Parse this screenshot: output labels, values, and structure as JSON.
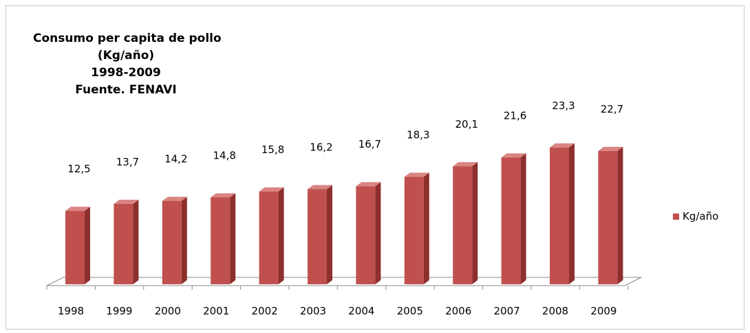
{
  "chart_data": {
    "type": "bar",
    "title_lines": [
      "Consumo per capita de pollo",
      "(Kg/año)",
      "1998-2009",
      "Fuente. FENAVI"
    ],
    "categories": [
      "1998",
      "1999",
      "2000",
      "2001",
      "2002",
      "2003",
      "2004",
      "2005",
      "2006",
      "2007",
      "2008",
      "2009"
    ],
    "series": [
      {
        "name": "Kg/año",
        "values": [
          12.5,
          13.7,
          14.2,
          14.8,
          15.8,
          16.2,
          16.7,
          18.3,
          20.1,
          21.6,
          23.3,
          22.7
        ]
      }
    ],
    "data_labels": [
      "12,5",
      "13,7",
      "14,2",
      "14,8",
      "15,8",
      "16,2",
      "16,7",
      "18,3",
      "20,1",
      "21,6",
      "23,3",
      "22,7"
    ],
    "legend_position": "right",
    "grid": false,
    "three_d": true,
    "colors": {
      "bar_front": "#c0504d",
      "bar_side": "#8c2f2d",
      "bar_top": "#d98583"
    }
  }
}
